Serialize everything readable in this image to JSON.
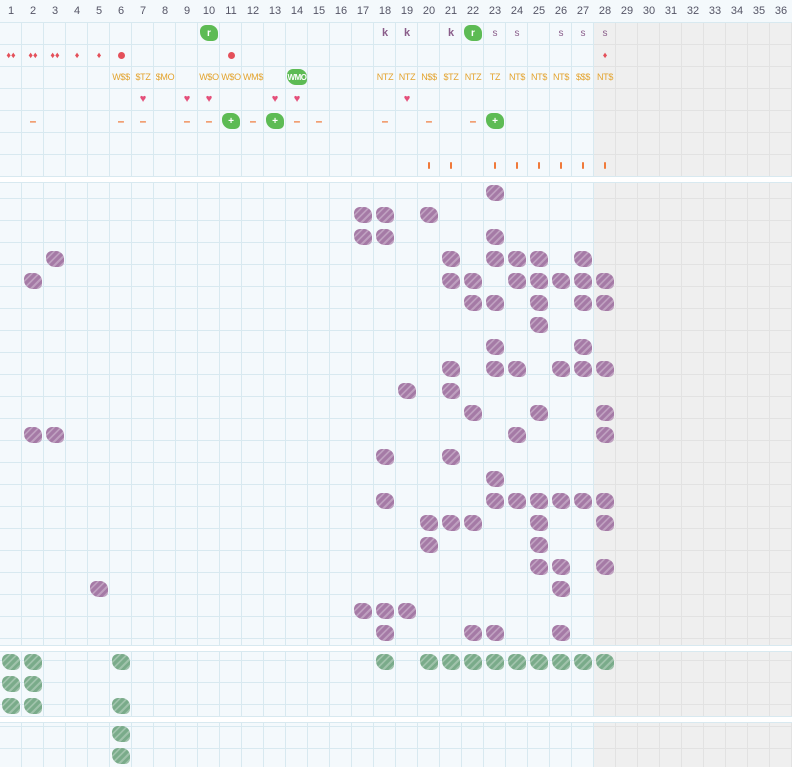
{
  "days": [
    "1",
    "2",
    "3",
    "4",
    "5",
    "6",
    "7",
    "8",
    "9",
    "10",
    "11",
    "12",
    "13",
    "14",
    "15",
    "16",
    "17",
    "18",
    "19",
    "20",
    "21",
    "22",
    "23",
    "24",
    "25",
    "26",
    "27",
    "28",
    "29",
    "30",
    "31",
    "32",
    "33",
    "34",
    "35",
    "36"
  ],
  "colors": {
    "purple": "#a57aa6",
    "green": "#7aab8a",
    "lime": "#5dbb54",
    "orange": "#f07a3a",
    "gold": "#e3a32d",
    "red": "#e4505a"
  },
  "rows": {
    "r1": [
      {
        "d": 10,
        "t": "lime",
        "v": "r"
      },
      {
        "d": 18,
        "t": "k",
        "v": "k"
      },
      {
        "d": 19,
        "t": "k",
        "v": "k"
      },
      {
        "d": 21,
        "t": "k",
        "v": "k"
      },
      {
        "d": 22,
        "t": "lime",
        "v": "r"
      },
      {
        "d": 23,
        "t": "s",
        "v": "s"
      },
      {
        "d": 24,
        "t": "s",
        "v": "s"
      },
      {
        "d": 26,
        "t": "s",
        "v": "s"
      },
      {
        "d": 27,
        "t": "s",
        "v": "s"
      },
      {
        "d": 28,
        "t": "s",
        "v": "s"
      }
    ],
    "r2": [
      {
        "d": 1,
        "t": "drop",
        "v": "♦♦"
      },
      {
        "d": 2,
        "t": "drop",
        "v": "♦♦"
      },
      {
        "d": 3,
        "t": "drop",
        "v": "♦♦"
      },
      {
        "d": 4,
        "t": "drop",
        "v": "♦"
      },
      {
        "d": 5,
        "t": "drop",
        "v": "♦"
      },
      {
        "d": 6,
        "t": "dot"
      },
      {
        "d": 11,
        "t": "dot"
      },
      {
        "d": 28,
        "t": "drop",
        "v": "♦"
      }
    ],
    "r3": [
      {
        "d": 6,
        "t": "text",
        "v": "W$$"
      },
      {
        "d": 7,
        "t": "text",
        "v": "$TZ"
      },
      {
        "d": 8,
        "t": "text",
        "v": "$MO"
      },
      {
        "d": 10,
        "t": "text",
        "v": "W$O"
      },
      {
        "d": 11,
        "t": "text",
        "v": "W$O"
      },
      {
        "d": 12,
        "t": "text",
        "v": "WM$"
      },
      {
        "d": 14,
        "t": "limew",
        "v": "WMO"
      },
      {
        "d": 18,
        "t": "text",
        "v": "NTZ"
      },
      {
        "d": 19,
        "t": "text",
        "v": "NTZ"
      },
      {
        "d": 20,
        "t": "text",
        "v": "N$$"
      },
      {
        "d": 21,
        "t": "text",
        "v": "$TZ"
      },
      {
        "d": 22,
        "t": "text",
        "v": "NTZ"
      },
      {
        "d": 23,
        "t": "text",
        "v": "TZ"
      },
      {
        "d": 24,
        "t": "text",
        "v": "NT$"
      },
      {
        "d": 25,
        "t": "text",
        "v": "NT$"
      },
      {
        "d": 26,
        "t": "text",
        "v": "NT$"
      },
      {
        "d": 27,
        "t": "text",
        "v": "$$$"
      },
      {
        "d": 28,
        "t": "text",
        "v": "NT$"
      }
    ],
    "r4": [
      {
        "d": 7,
        "t": "heart",
        "v": "♥"
      },
      {
        "d": 9,
        "t": "heart",
        "v": "♥"
      },
      {
        "d": 10,
        "t": "heart",
        "v": "♥"
      },
      {
        "d": 13,
        "t": "heart",
        "v": "♥"
      },
      {
        "d": 14,
        "t": "heart",
        "v": "♥"
      },
      {
        "d": 19,
        "t": "heart",
        "v": "♥"
      }
    ],
    "r5": [
      {
        "d": 2,
        "t": "dash"
      },
      {
        "d": 6,
        "t": "dash"
      },
      {
        "d": 7,
        "t": "dash"
      },
      {
        "d": 9,
        "t": "dash"
      },
      {
        "d": 10,
        "t": "dash"
      },
      {
        "d": 11,
        "t": "lime",
        "v": "+"
      },
      {
        "d": 12,
        "t": "dash"
      },
      {
        "d": 13,
        "t": "lime",
        "v": "+"
      },
      {
        "d": 14,
        "t": "dash"
      },
      {
        "d": 15,
        "t": "dash"
      },
      {
        "d": 18,
        "t": "dash"
      },
      {
        "d": 20,
        "t": "dash"
      },
      {
        "d": 22,
        "t": "dash"
      },
      {
        "d": 23,
        "t": "lime",
        "v": "+"
      }
    ],
    "r6": [
      {
        "d": 20,
        "t": "bar"
      },
      {
        "d": 21,
        "t": "bar"
      },
      {
        "d": 23,
        "t": "bar"
      },
      {
        "d": 24,
        "t": "bar"
      },
      {
        "d": 25,
        "t": "bar"
      },
      {
        "d": 26,
        "t": "bar"
      },
      {
        "d": 27,
        "t": "bar"
      },
      {
        "d": 28,
        "t": "bar"
      }
    ]
  },
  "purple_rows": [
    [
      23
    ],
    [
      17,
      18,
      20
    ],
    [
      17,
      18,
      23
    ],
    [
      3,
      21,
      23,
      24,
      25,
      27
    ],
    [
      2,
      21,
      22,
      24,
      25,
      26,
      27,
      28
    ],
    [
      22,
      23,
      25,
      27,
      28
    ],
    [
      25
    ],
    [
      23,
      27
    ],
    [
      21,
      23,
      24,
      26,
      27,
      28
    ],
    [
      19,
      21
    ],
    [
      22,
      25,
      28
    ],
    [
      2,
      3,
      24,
      28
    ],
    [
      18,
      21
    ],
    [
      23
    ],
    [
      18,
      23,
      24,
      25,
      26,
      27,
      28
    ],
    [
      20,
      21,
      22,
      25,
      28
    ],
    [
      20,
      25
    ],
    [
      25,
      26,
      28
    ],
    [
      5,
      26
    ],
    [
      17,
      18,
      19
    ],
    [
      18,
      22,
      23,
      26
    ]
  ],
  "green_rows": [
    [
      1,
      2,
      6,
      18,
      20,
      21,
      22,
      23,
      24,
      25,
      26,
      27,
      28
    ],
    [
      1,
      2
    ],
    [
      1,
      2,
      6
    ]
  ],
  "green_rows_2": [
    [
      6
    ],
    [
      6
    ]
  ]
}
